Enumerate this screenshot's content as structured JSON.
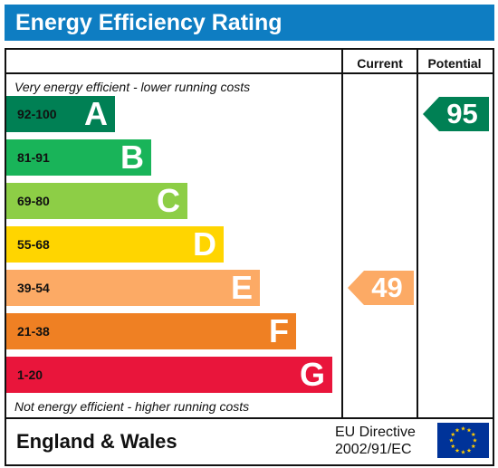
{
  "title": "Energy Efficiency Rating",
  "columns": {
    "current": "Current",
    "potential": "Potential"
  },
  "notes": {
    "top": "Very energy efficient - lower running costs",
    "bottom": "Not energy efficient - higher running costs"
  },
  "bands": [
    {
      "range": "92-100",
      "letter": "A",
      "color": "#008054"
    },
    {
      "range": "81-91",
      "letter": "B",
      "color": "#19b459"
    },
    {
      "range": "69-80",
      "letter": "C",
      "color": "#8dce46"
    },
    {
      "range": "55-68",
      "letter": "D",
      "color": "#ffd500"
    },
    {
      "range": "39-54",
      "letter": "E",
      "color": "#fcaa65"
    },
    {
      "range": "21-38",
      "letter": "F",
      "color": "#ef8023"
    },
    {
      "range": "1-20",
      "letter": "G",
      "color": "#e9153b"
    }
  ],
  "ratings": {
    "current": {
      "value": "49",
      "band": "E",
      "color": "#fcaa65"
    },
    "potential": {
      "value": "95",
      "band": "A",
      "color": "#008054"
    }
  },
  "footer": {
    "region": "England & Wales",
    "directive_line1": "EU Directive",
    "directive_line2": "2002/91/EC"
  },
  "chart_data": {
    "type": "bar",
    "title": "Energy Efficiency Rating",
    "categories": [
      "A",
      "B",
      "C",
      "D",
      "E",
      "F",
      "G"
    ],
    "ranges": [
      "92-100",
      "81-91",
      "69-80",
      "55-68",
      "39-54",
      "21-38",
      "1-20"
    ],
    "current": 49,
    "potential": 95
  },
  "colors": {
    "header": "#0e7dc2",
    "flag_blue": "#003399",
    "flag_star": "#ffcc00"
  }
}
